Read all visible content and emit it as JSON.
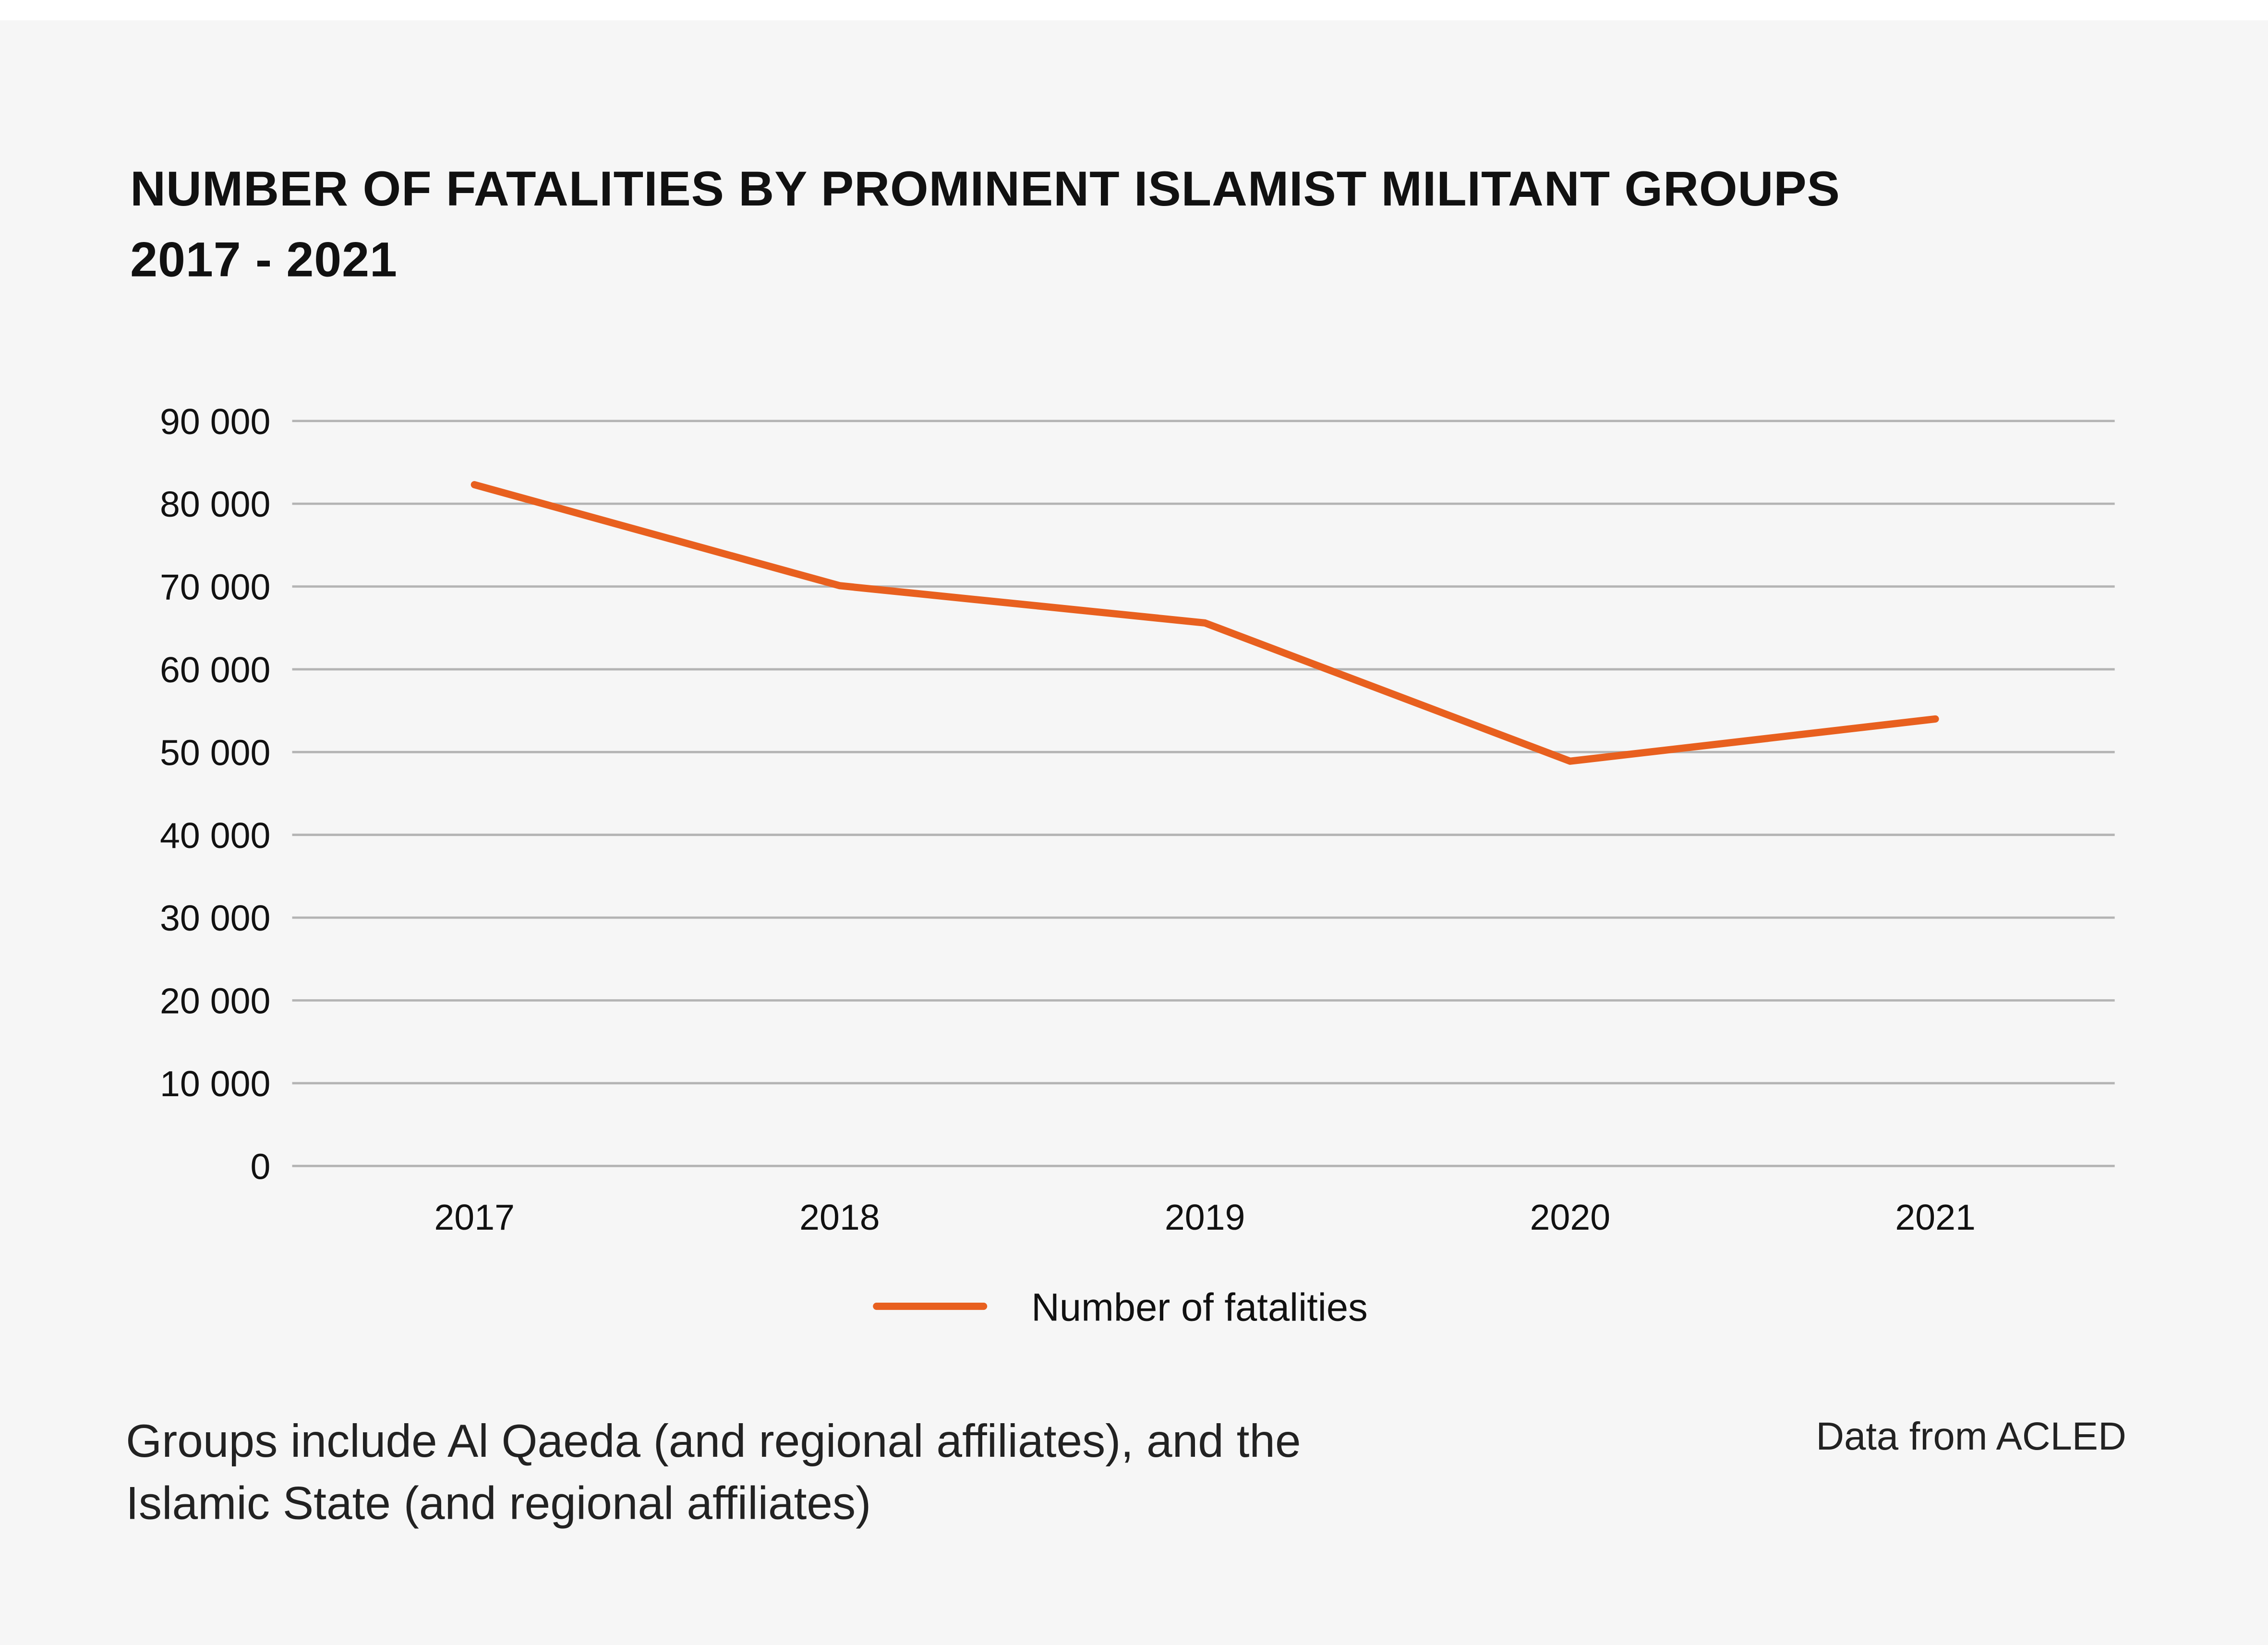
{
  "chart_data": {
    "type": "line",
    "title": "NUMBER OF FATALITIES BY PROMINENT ISLAMIST MILITANT GROUPS",
    "subtitle": "2017 - 2021",
    "categories": [
      "2017",
      "2018",
      "2019",
      "2020",
      "2021"
    ],
    "series": [
      {
        "name": "Number of fatalities",
        "values": [
          82300,
          70100,
          65600,
          48900,
          54000
        ],
        "color": "#e8601f"
      }
    ],
    "ylim": [
      0,
      90000
    ],
    "yticks": [
      0,
      10000,
      20000,
      30000,
      40000,
      50000,
      60000,
      70000,
      80000,
      90000
    ],
    "ytick_labels": [
      "0",
      "10 000",
      "20 000",
      "30 000",
      "40 000",
      "50 000",
      "60 000",
      "70 000",
      "80 000",
      "90 000"
    ],
    "xlabel": "",
    "ylabel": "",
    "grid": "horizontal",
    "legend": "bottom-center"
  },
  "footnote": [
    "Groups include Al Qaeda (and regional affiliates), and the",
    "Islamic State (and regional affiliates)"
  ],
  "source": "Data from ACLED",
  "colors": {
    "background": "#f6f6f6",
    "grid": "#b4b4b4",
    "line": "#e8601f"
  }
}
